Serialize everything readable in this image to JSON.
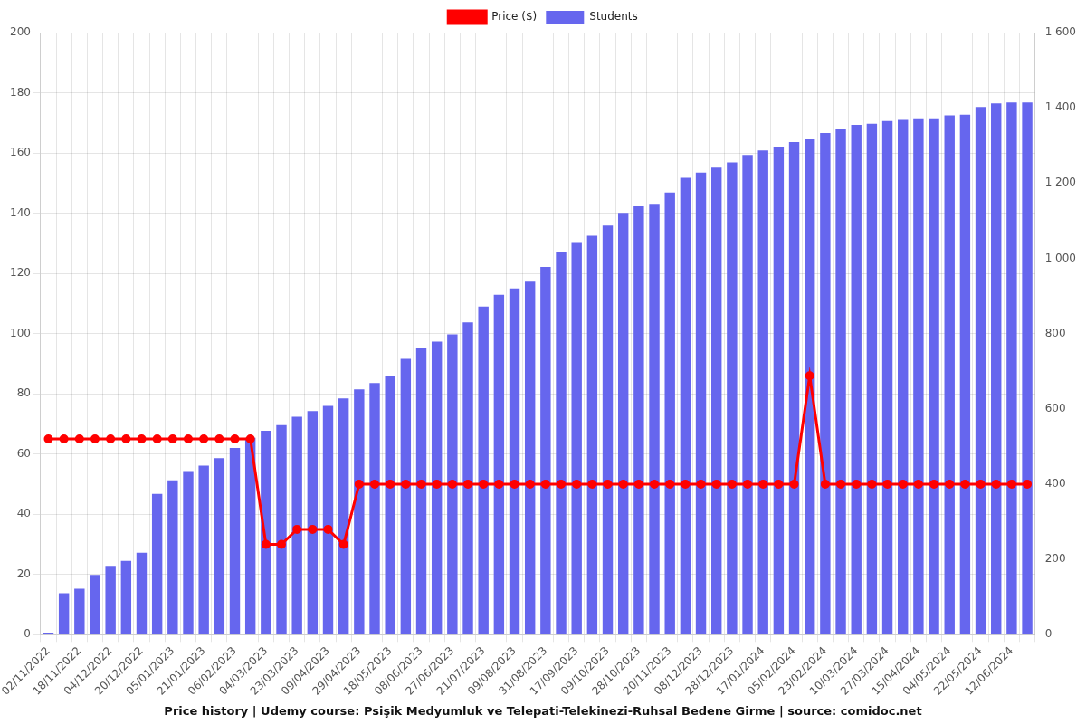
{
  "chart_data": {
    "type": "bar",
    "title": "Price history | Udemy course: Psişik Medyumluk ve Telepati-Telekinezi-Ruhsal Bedene Girme | source: comidoc.net",
    "categories": [
      "02/11/2022",
      null,
      "18/11/2022",
      null,
      "04/12/2022",
      null,
      "20/12/2022",
      null,
      "05/01/2023",
      null,
      "21/01/2023",
      null,
      "06/02/2023",
      null,
      "04/03/2023",
      null,
      "23/03/2023",
      null,
      "09/04/2023",
      null,
      "29/04/2023",
      null,
      "18/05/2023",
      null,
      "08/06/2023",
      null,
      "27/06/2023",
      null,
      "21/07/2023",
      null,
      "09/08/2023",
      null,
      "31/08/2023",
      null,
      "17/09/2023",
      null,
      "09/10/2023",
      null,
      "28/10/2023",
      null,
      "20/11/2023",
      null,
      "08/12/2023",
      null,
      "28/12/2023",
      null,
      "17/01/2024",
      null,
      "05/02/2024",
      null,
      "23/02/2024",
      null,
      "10/03/2024",
      null,
      "27/03/2024",
      null,
      "15/04/2024",
      null,
      "04/05/2024",
      null,
      "22/05/2024",
      null,
      "12/06/2024",
      null
    ],
    "series": [
      {
        "name": "Price ($)",
        "type": "line",
        "color": "#ff0000",
        "marker": "circle",
        "values": [
          65,
          65,
          65,
          65,
          65,
          65,
          65,
          65,
          65,
          65,
          65,
          65,
          65,
          65,
          30,
          30,
          35,
          35,
          35,
          30,
          50,
          50,
          50,
          50,
          50,
          50,
          50,
          50,
          50,
          50,
          50,
          50,
          50,
          50,
          50,
          50,
          50,
          50,
          50,
          50,
          50,
          50,
          50,
          50,
          50,
          50,
          50,
          50,
          50,
          86,
          50,
          50,
          50,
          50,
          50,
          50,
          50,
          50,
          50,
          50,
          50,
          50,
          50,
          50
        ]
      },
      {
        "name": "Students",
        "type": "bar",
        "color": "#6666ee",
        "axis": "y2",
        "values": [
          5,
          110,
          122,
          159,
          183,
          196,
          218,
          374,
          410,
          435,
          449,
          469,
          496,
          523,
          542,
          557,
          579,
          594,
          608,
          628,
          652,
          669,
          686,
          733,
          762,
          779,
          798,
          830,
          872,
          903,
          920,
          938,
          977,
          1016,
          1043,
          1060,
          1087,
          1121,
          1138,
          1145,
          1175,
          1214,
          1228,
          1241,
          1255,
          1275,
          1287,
          1297,
          1309,
          1316,
          1333,
          1343,
          1355,
          1358,
          1365,
          1368,
          1372,
          1372,
          1380,
          1382,
          1402,
          1412,
          1414,
          1414
        ]
      }
    ],
    "ylim": [
      0,
      200
    ],
    "yticks": [
      0,
      20,
      40,
      60,
      80,
      100,
      120,
      140,
      160,
      180,
      200
    ],
    "y2lim": [
      0,
      1600
    ],
    "y2ticks": [
      0,
      200,
      400,
      600,
      800,
      {
        "value": 1000,
        "label": "1 000"
      },
      {
        "value": 1200,
        "label": "1 200"
      },
      {
        "value": 1400,
        "label": "1 400"
      },
      {
        "value": 1600,
        "label": "1 600"
      }
    ],
    "legend": "top",
    "grid": true
  }
}
